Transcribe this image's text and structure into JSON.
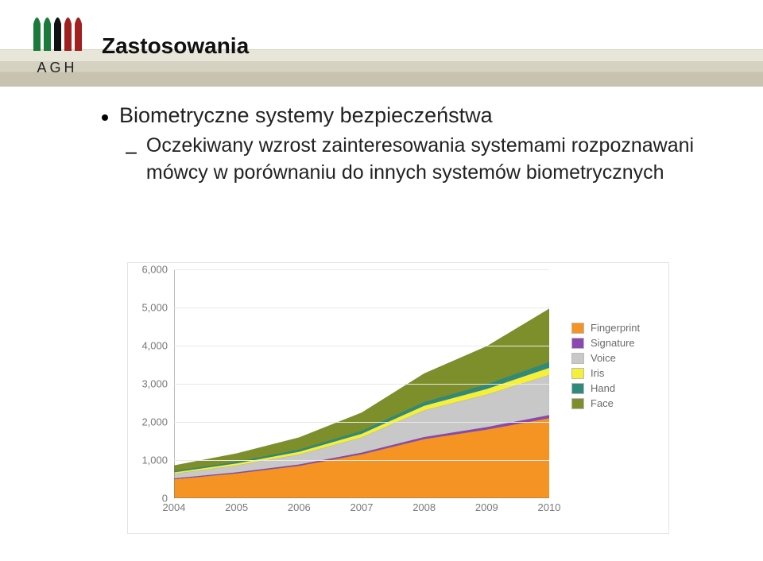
{
  "logo_text": "AGH",
  "title": "Zastosowania",
  "title_fontsize": 28,
  "bullet_main": "Biometryczne systemy bezpieczeństwa",
  "bullet_main_fontsize": 27,
  "bullet_sub": "Oczekiwany wzrost zainteresowania systemami rozpoznawani mówcy w porównaniu do innych systemów biometrycznych",
  "bullet_sub_fontsize": 25,
  "logo_bars": [
    "#1a7a3a",
    "#1a7a3a",
    "#111",
    "#a02020",
    "#a02020"
  ],
  "chart": {
    "type": "area",
    "background_color": "#ffffff",
    "grid_color": "#e9e9e9",
    "axis_color": "#777777",
    "tick_fontsize": 13,
    "ylim": [
      0,
      6000
    ],
    "ytick_step": 1000,
    "yticks": [
      0,
      1000,
      2000,
      3000,
      4000,
      5000,
      6000
    ],
    "ytick_labels": [
      "0",
      "1,000",
      "2,000",
      "3,000",
      "4,000",
      "5,000",
      "6,000"
    ],
    "x_categories": [
      "2004",
      "2005",
      "2006",
      "2007",
      "2008",
      "2009",
      "2010"
    ],
    "legend": [
      {
        "label": "Fingerprint",
        "color": "#f59423"
      },
      {
        "label": "Signature",
        "color": "#8a48b0"
      },
      {
        "label": "Voice",
        "color": "#c8c8c8"
      },
      {
        "label": "Iris",
        "color": "#f4f03a"
      },
      {
        "label": "Hand",
        "color": "#2f8a7a"
      },
      {
        "label": "Face",
        "color": "#7c8f2a"
      }
    ],
    "series_order_bottom_to_top": [
      "Fingerprint",
      "Signature",
      "Voice",
      "Iris",
      "Hand",
      "Face"
    ],
    "series": {
      "Fingerprint": {
        "color": "#f59423",
        "values": [
          500,
          650,
          850,
          1150,
          1550,
          1800,
          2100
        ]
      },
      "Signature": {
        "color": "#8a48b0",
        "values": [
          20,
          30,
          35,
          45,
          55,
          65,
          80
        ]
      },
      "Voice": {
        "color": "#c8c8c8",
        "values": [
          120,
          180,
          260,
          400,
          700,
          850,
          1050
        ]
      },
      "Iris": {
        "color": "#f4f03a",
        "values": [
          40,
          55,
          75,
          95,
          120,
          150,
          190
        ]
      },
      "Hand": {
        "color": "#2f8a7a",
        "values": [
          30,
          40,
          55,
          75,
          95,
          120,
          150
        ]
      },
      "Face": {
        "color": "#7c8f2a",
        "values": [
          150,
          220,
          320,
          480,
          750,
          1000,
          1400
        ]
      }
    }
  }
}
